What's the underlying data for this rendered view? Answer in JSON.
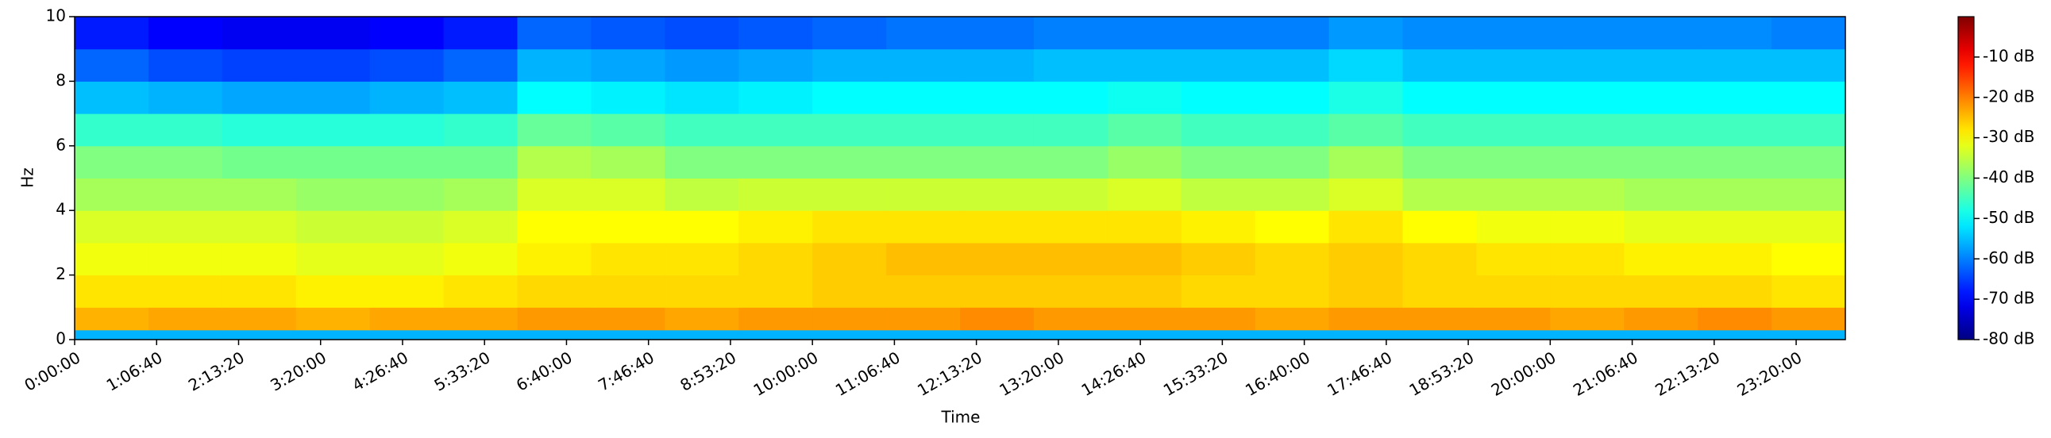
{
  "chart_data": {
    "type": "heatmap",
    "colormap": "jet",
    "xlabel": "Time",
    "ylabel": "Hz",
    "xlim": [
      0,
      86400
    ],
    "ylim": [
      0,
      10
    ],
    "clim": [
      -80,
      0
    ],
    "xticks": [
      {
        "value": 0,
        "label": "0:00:00"
      },
      {
        "value": 4000,
        "label": "1:06:40"
      },
      {
        "value": 8000,
        "label": "2:13:20"
      },
      {
        "value": 12000,
        "label": "3:20:00"
      },
      {
        "value": 16000,
        "label": "4:26:40"
      },
      {
        "value": 20000,
        "label": "5:33:20"
      },
      {
        "value": 24000,
        "label": "6:40:00"
      },
      {
        "value": 28000,
        "label": "7:46:40"
      },
      {
        "value": 32000,
        "label": "8:53:20"
      },
      {
        "value": 36000,
        "label": "10:00:00"
      },
      {
        "value": 40000,
        "label": "11:06:40"
      },
      {
        "value": 44000,
        "label": "12:13:20"
      },
      {
        "value": 48000,
        "label": "13:20:00"
      },
      {
        "value": 52000,
        "label": "14:26:40"
      },
      {
        "value": 56000,
        "label": "15:33:20"
      },
      {
        "value": 60000,
        "label": "16:40:00"
      },
      {
        "value": 64000,
        "label": "17:46:40"
      },
      {
        "value": 68000,
        "label": "18:53:20"
      },
      {
        "value": 72000,
        "label": "20:00:00"
      },
      {
        "value": 76000,
        "label": "21:06:40"
      },
      {
        "value": 80000,
        "label": "22:13:20"
      },
      {
        "value": 84000,
        "label": "23:20:00"
      }
    ],
    "yticks": [
      0,
      2,
      4,
      6,
      8,
      10
    ],
    "cticks": [
      {
        "value": -80,
        "label": "-80 dB"
      },
      {
        "value": -70,
        "label": "-70 dB"
      },
      {
        "value": -60,
        "label": "-60 dB"
      },
      {
        "value": -50,
        "label": "-50 dB"
      },
      {
        "value": -40,
        "label": "-40 dB"
      },
      {
        "value": -30,
        "label": "-30 dB"
      },
      {
        "value": -20,
        "label": "-20 dB"
      },
      {
        "value": -10,
        "label": "-10 dB"
      }
    ],
    "x_bins": [
      0,
      3600,
      7200,
      10800,
      14400,
      18000,
      21600,
      25200,
      28800,
      32400,
      36000,
      39600,
      43200,
      46800,
      50400,
      54000,
      57600,
      61200,
      64800,
      68400,
      72000,
      75600,
      79200,
      82800,
      86400
    ],
    "y_bins": [
      0,
      0.3,
      1,
      2,
      3,
      4,
      5,
      6,
      7,
      8,
      9,
      10
    ],
    "z": [
      [
        -56,
        -56,
        -56,
        -56,
        -56,
        -56,
        -56,
        -56,
        -56,
        -56,
        -56,
        -56,
        -56,
        -56,
        -56,
        -56,
        -56,
        -56,
        -56,
        -56,
        -56,
        -56,
        -56,
        -56
      ],
      [
        -24,
        -23,
        -23,
        -24,
        -23,
        -23,
        -22,
        -22,
        -23,
        -22,
        -22,
        -22,
        -21,
        -22,
        -22,
        -22,
        -23,
        -22,
        -22,
        -22,
        -23,
        -22,
        -21,
        -22
      ],
      [
        -28,
        -28,
        -28,
        -29,
        -29,
        -28,
        -27,
        -27,
        -27,
        -27,
        -26,
        -26,
        -26,
        -26,
        -26,
        -27,
        -27,
        -26,
        -27,
        -27,
        -27,
        -27,
        -27,
        -28
      ],
      [
        -31,
        -31,
        -31,
        -32,
        -32,
        -31,
        -29,
        -28,
        -28,
        -27,
        -26,
        -25,
        -25,
        -25,
        -25,
        -26,
        -27,
        -26,
        -27,
        -28,
        -28,
        -29,
        -29,
        -30
      ],
      [
        -33,
        -33,
        -33,
        -34,
        -34,
        -33,
        -30,
        -30,
        -30,
        -29,
        -28,
        -28,
        -28,
        -28,
        -28,
        -29,
        -30,
        -28,
        -30,
        -31,
        -31,
        -32,
        -32,
        -32
      ],
      [
        -37,
        -37,
        -37,
        -38,
        -38,
        -37,
        -33,
        -33,
        -35,
        -34,
        -34,
        -34,
        -34,
        -34,
        -33,
        -35,
        -35,
        -33,
        -36,
        -36,
        -36,
        -37,
        -37,
        -37
      ],
      [
        -40,
        -40,
        -41,
        -41,
        -41,
        -41,
        -36,
        -37,
        -40,
        -40,
        -40,
        -40,
        -40,
        -40,
        -38,
        -40,
        -40,
        -37,
        -40,
        -40,
        -40,
        -40,
        -40,
        -40
      ],
      [
        -46,
        -46,
        -47,
        -47,
        -47,
        -46,
        -42,
        -43,
        -45,
        -45,
        -45,
        -45,
        -45,
        -45,
        -43,
        -45,
        -45,
        -43,
        -45,
        -45,
        -45,
        -45,
        -45,
        -45
      ],
      [
        -55,
        -56,
        -57,
        -57,
        -56,
        -55,
        -50,
        -51,
        -52,
        -51,
        -50,
        -50,
        -50,
        -50,
        -49,
        -50,
        -50,
        -48,
        -50,
        -50,
        -50,
        -50,
        -50,
        -50
      ],
      [
        -62,
        -64,
        -65,
        -65,
        -64,
        -62,
        -56,
        -57,
        -58,
        -57,
        -56,
        -56,
        -56,
        -55,
        -55,
        -55,
        -55,
        -53,
        -55,
        -55,
        -55,
        -55,
        -55,
        -55
      ],
      [
        -68,
        -70,
        -71,
        -71,
        -70,
        -68,
        -62,
        -63,
        -64,
        -63,
        -62,
        -61,
        -61,
        -60,
        -60,
        -60,
        -60,
        -58,
        -59,
        -59,
        -59,
        -59,
        -59,
        -60
      ]
    ]
  }
}
